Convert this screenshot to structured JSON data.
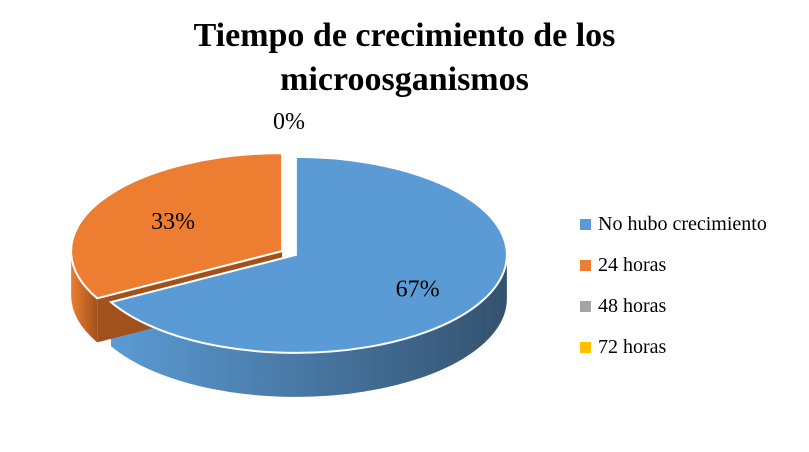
{
  "chart_data": {
    "type": "pie",
    "title": [
      "Tiempo de crecimiento de los",
      "microosganismos"
    ],
    "categories": [
      "No hubo crecimiento",
      "24 horas",
      "48 horas",
      "72 horas"
    ],
    "values": [
      67,
      33,
      0,
      0
    ],
    "data_labels": [
      "67%",
      "33%",
      "0%",
      ""
    ],
    "colors": [
      "#5b9bd5",
      "#ed7d31",
      "#a5a5a5",
      "#ffc000"
    ],
    "dark_colors": [
      "#34526f",
      "#a1521c",
      "#707070",
      "#b08400"
    ],
    "legend_position": "right",
    "style": "3d-exploded"
  }
}
